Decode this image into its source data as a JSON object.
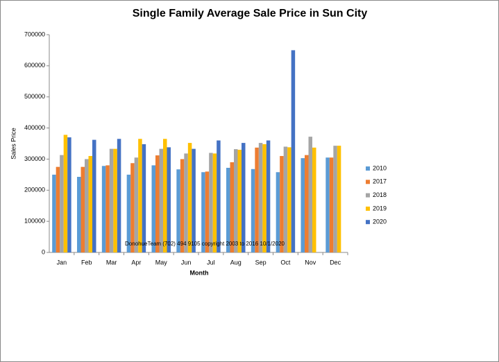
{
  "chart_data": {
    "type": "bar",
    "title": "Single Family Average Sale Price in Sun City",
    "x_label": "Month",
    "y_label": "Sales Price",
    "annotation": "DonohueTeam  (702) 494 9105 copyright  2003  to  2016  10/1/2020",
    "categories": [
      "Jan",
      "Feb",
      "Mar",
      "Apr",
      "May",
      "Jun",
      "Jul",
      "Aug",
      "Sep",
      "Oct",
      "Nov",
      "Dec"
    ],
    "series": [
      {
        "name": "2010",
        "color": "#5b9bd5",
        "values": [
          250000,
          243000,
          278000,
          250000,
          280000,
          267000,
          258000,
          272000,
          268000,
          258000,
          303000,
          305000
        ]
      },
      {
        "name": "2017",
        "color": "#ed7d31",
        "values": [
          275000,
          275000,
          280000,
          287000,
          312000,
          300000,
          260000,
          290000,
          337000,
          310000,
          313000,
          305000
        ]
      },
      {
        "name": "2018",
        "color": "#a5a5a5",
        "values": [
          313000,
          300000,
          333000,
          305000,
          333000,
          318000,
          320000,
          332000,
          352000,
          340000,
          372000,
          343000
        ]
      },
      {
        "name": "2019",
        "color": "#ffc000",
        "values": [
          378000,
          310000,
          333000,
          365000,
          365000,
          352000,
          318000,
          330000,
          348000,
          338000,
          337000,
          343000
        ]
      },
      {
        "name": "2020",
        "color": "#4472c4",
        "values": [
          370000,
          362000,
          365000,
          348000,
          338000,
          333000,
          360000,
          352000,
          360000,
          650000,
          null,
          null
        ]
      }
    ],
    "ylim": [
      0,
      700000
    ],
    "yticks": [
      0,
      100000,
      200000,
      300000,
      400000,
      500000,
      600000,
      700000
    ],
    "legend": "right"
  }
}
